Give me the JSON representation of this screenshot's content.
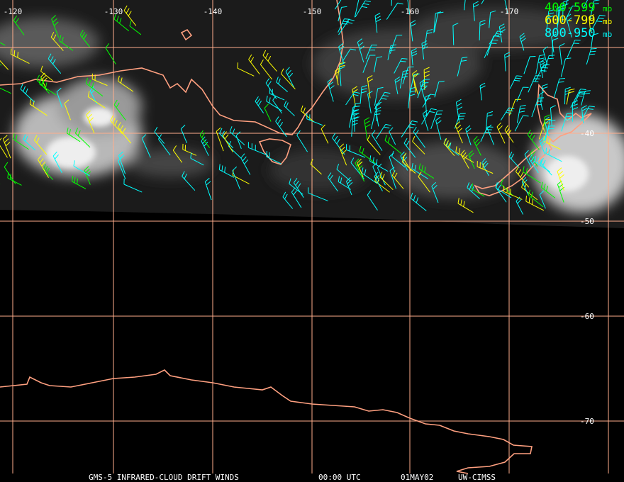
{
  "longitude_labels": [
    "-120",
    "-130",
    "-140",
    "-150",
    "-160",
    "-170"
  ],
  "latitude_labels": [
    "-40",
    "-50",
    "-60",
    "-70"
  ],
  "legend": [
    {
      "label": "400-599",
      "unit": "mb",
      "color": "#00ff00"
    },
    {
      "label": "600-799",
      "unit": "mb",
      "color": "#ffff00"
    },
    {
      "label": "800-950",
      "unit": "mb",
      "color": "#00ffff"
    }
  ],
  "footer": [
    "GMS-5 INFRARED-CLOUD DRIFT WINDS",
    "00:00 UTC",
    "01MAY02",
    "UW-CIMSS"
  ]
}
